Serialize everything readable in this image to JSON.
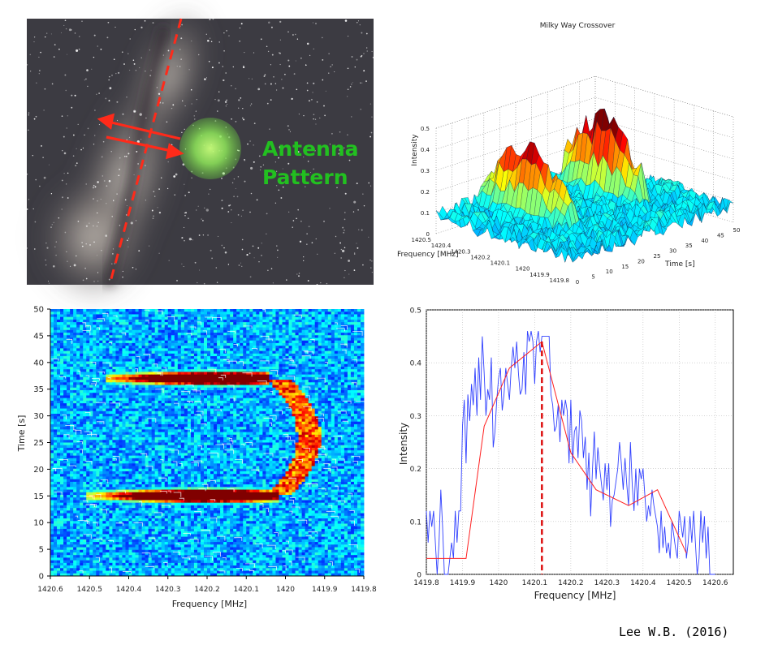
{
  "photo": {
    "label_line1": "Antenna",
    "label_line2": "Pattern",
    "colors": {
      "sky": "#3c3b42",
      "label": "#22c020",
      "arrow": "#ff2a1a",
      "spot": "#9be65a"
    }
  },
  "credit": "Lee W.B. (2016)",
  "chart_data": [
    {
      "type": "surface",
      "title": "Milky Way Crossover",
      "zlabel": "Intensity",
      "xlabel": "Frequency [MHz]",
      "ylabel": "Time [s]",
      "z_ticks": [
        "0",
        "0.1",
        "0.2",
        "0.3",
        "0.4",
        "0.5"
      ],
      "freq_ticks": [
        "1420.5",
        "1420.4",
        "1420.3",
        "1420.2",
        "1420.1",
        "1420",
        "1419.9",
        "1419.8"
      ],
      "time_ticks": [
        "0",
        "5",
        "10",
        "15",
        "20",
        "25",
        "30",
        "35",
        "40",
        "45",
        "50"
      ],
      "zlim": [
        0,
        0.5
      ],
      "ridges": [
        {
          "time": 15,
          "freq_from": 1420.05,
          "freq_to": 1420.5,
          "peak_intensity": 0.42
        },
        {
          "time": 37,
          "freq_from": 1420.05,
          "freq_to": 1420.45,
          "peak_intensity": 0.45
        }
      ],
      "colormap": "jet"
    },
    {
      "type": "heatmap",
      "xlabel": "Frequency [MHz]",
      "ylabel": "Time [s]",
      "x_ticks": [
        "1420.6",
        "1420.5",
        "1420.4",
        "1420.3",
        "1420.2",
        "1420.1",
        "1420",
        "1419.9",
        "1419.8"
      ],
      "y_ticks": [
        "0",
        "5",
        "10",
        "15",
        "20",
        "25",
        "30",
        "35",
        "40",
        "45",
        "50"
      ],
      "xlim": [
        1420.6,
        1419.8
      ],
      "ylim": [
        0,
        50
      ],
      "ridges": [
        {
          "time": 15,
          "freq_from": 1420.03,
          "freq_to": 1420.5,
          "peak_freq": 1420.2,
          "peak_intensity": 0.45
        },
        {
          "time": 37,
          "freq_from": 1420.05,
          "freq_to": 1420.45,
          "peak_freq": 1420.17,
          "peak_intensity": 0.45
        }
      ],
      "arc": {
        "time_from": 15,
        "time_to": 37,
        "freq_at_mid": 1419.94
      },
      "colormap": "jet"
    },
    {
      "type": "line",
      "xlabel": "Frequency [MHz]",
      "ylabel": "Intensity",
      "xlim": [
        1419.8,
        1420.65
      ],
      "ylim": [
        0,
        0.5
      ],
      "x_ticks": [
        "1419.8",
        "1419.9",
        "1420",
        "1420.1",
        "1420.2",
        "1420.3",
        "1420.4",
        "1420.5",
        "1420.6"
      ],
      "y_ticks": [
        "0",
        "0.1",
        "0.2",
        "0.3",
        "0.4",
        "0.5"
      ],
      "grid": true,
      "series": [
        {
          "color": "#3040ff",
          "x": [
            1419.8,
            1419.805,
            1419.81,
            1419.815,
            1419.82,
            1419.83,
            1419.835,
            1419.84,
            1419.845,
            1419.85,
            1419.86,
            1419.865,
            1419.87,
            1419.875,
            1419.88,
            1419.885,
            1419.89,
            1419.895,
            1419.9,
            1419.905,
            1419.91,
            1419.915,
            1419.92,
            1419.925,
            1419.93,
            1419.935,
            1419.94,
            1419.945,
            1419.95,
            1419.955,
            1419.96,
            1419.965,
            1419.97,
            1419.975,
            1419.98,
            1419.985,
            1419.99,
            1419.995,
            1420,
            1420.005,
            1420.01,
            1420.015,
            1420.02,
            1420.03,
            1420.035,
            1420.04,
            1420.045,
            1420.05,
            1420.055,
            1420.06,
            1420.065,
            1420.07,
            1420.075,
            1420.08,
            1420.085,
            1420.09,
            1420.095,
            1420.1,
            1420.105,
            1420.11,
            1420.115,
            1420.12,
            1420.13,
            1420.135,
            1420.14,
            1420.145,
            1420.15,
            1420.155,
            1420.16,
            1420.165,
            1420.17,
            1420.175,
            1420.18,
            1420.185,
            1420.19,
            1420.195,
            1420.2,
            1420.205,
            1420.21,
            1420.215,
            1420.22,
            1420.225,
            1420.23,
            1420.235,
            1420.24,
            1420.245,
            1420.25,
            1420.255,
            1420.26,
            1420.265,
            1420.27,
            1420.275,
            1420.28,
            1420.29,
            1420.295,
            1420.3,
            1420.305,
            1420.31,
            1420.315,
            1420.32,
            1420.33,
            1420.335,
            1420.34,
            1420.345,
            1420.35,
            1420.355,
            1420.36,
            1420.365,
            1420.37,
            1420.375,
            1420.38,
            1420.385,
            1420.39,
            1420.395,
            1420.4,
            1420.41,
            1420.415,
            1420.42,
            1420.425,
            1420.43,
            1420.44,
            1420.445,
            1420.45,
            1420.455,
            1420.46,
            1420.465,
            1420.47,
            1420.475,
            1420.48,
            1420.49,
            1420.495,
            1420.5,
            1420.51,
            1420.515,
            1420.52,
            1420.525,
            1420.53,
            1420.535,
            1420.54,
            1420.55,
            1420.555,
            1420.56,
            1420.565,
            1420.57,
            1420.575,
            1420.58,
            1420.585,
            1420.59,
            1420.6
          ],
          "y": [
            0.12,
            0.06,
            0.12,
            0.09,
            0.12,
            0.0,
            0.06,
            0.16,
            0.09,
            0.0,
            0.0,
            0.03,
            0.06,
            0.03,
            0.12,
            0.06,
            0.12,
            0.12,
            0.28,
            0.33,
            0.21,
            0.34,
            0.29,
            0.36,
            0.32,
            0.39,
            0.3,
            0.41,
            0.33,
            0.45,
            0.38,
            0.3,
            0.35,
            0.33,
            0.41,
            0.24,
            0.27,
            0.33,
            0.37,
            0.39,
            0.31,
            0.34,
            0.39,
            0.33,
            0.39,
            0.43,
            0.39,
            0.44,
            0.38,
            0.34,
            0.35,
            0.42,
            0.34,
            0.46,
            0.44,
            0.46,
            0.44,
            0.36,
            0.44,
            0.46,
            0.42,
            0.45,
            0.45,
            0.45,
            0.45,
            0.34,
            0.32,
            0.27,
            0.28,
            0.32,
            0.25,
            0.33,
            0.3,
            0.33,
            0.31,
            0.21,
            0.33,
            0.21,
            0.27,
            0.28,
            0.22,
            0.31,
            0.29,
            0.22,
            0.26,
            0.16,
            0.23,
            0.11,
            0.2,
            0.27,
            0.18,
            0.24,
            0.2,
            0.14,
            0.21,
            0.16,
            0.21,
            0.09,
            0.14,
            0.15,
            0.2,
            0.25,
            0.21,
            0.16,
            0.22,
            0.17,
            0.13,
            0.25,
            0.17,
            0.12,
            0.2,
            0.13,
            0.2,
            0.18,
            0.2,
            0.1,
            0.13,
            0.11,
            0.16,
            0.13,
            0.09,
            0.04,
            0.12,
            0.05,
            0.09,
            0.04,
            0.06,
            0.03,
            0.1,
            0.05,
            0.03,
            0.12,
            0.07,
            0.11,
            0.03,
            0.06,
            0.11,
            0.06,
            0.12,
            0.0,
            0.03,
            0.12,
            0.06,
            0.11,
            0.03,
            0.09,
            0.0,
            0.0,
            0.0
          ]
        },
        {
          "color": "#ff2020",
          "x": [
            1419.8,
            1419.91,
            1419.96,
            1420.03,
            1420.12,
            1420.2,
            1420.27,
            1420.36,
            1420.44,
            1420.52
          ],
          "y": [
            0.03,
            0.03,
            0.28,
            0.39,
            0.44,
            0.23,
            0.16,
            0.13,
            0.16,
            0.04
          ]
        }
      ],
      "marker": {
        "x": 1420.12,
        "color": "#dd1010",
        "style": "dashed"
      }
    }
  ]
}
